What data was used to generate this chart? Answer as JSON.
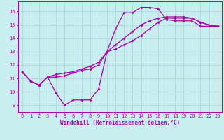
{
  "xlabel": "Windchill (Refroidissement éolien,°C)",
  "bg_color": "#c8eef0",
  "grid_color": "#b0d8dc",
  "line_color": "#aa00aa",
  "marker": "D",
  "markersize": 2.0,
  "linewidth": 0.9,
  "xlim": [
    -0.5,
    23.5
  ],
  "ylim": [
    8.5,
    16.75
  ],
  "xticks": [
    0,
    1,
    2,
    3,
    4,
    5,
    6,
    7,
    8,
    9,
    10,
    11,
    12,
    13,
    14,
    15,
    16,
    17,
    18,
    19,
    20,
    21,
    22,
    23
  ],
  "yticks": [
    9,
    10,
    11,
    12,
    13,
    14,
    15,
    16
  ],
  "curve1_x": [
    0,
    1,
    2,
    3,
    4,
    5,
    6,
    7,
    8,
    9,
    10,
    11,
    12,
    13,
    14,
    15,
    16,
    17,
    18,
    19,
    20,
    21,
    22,
    23
  ],
  "curve1_y": [
    11.5,
    10.8,
    10.5,
    11.1,
    9.9,
    9.0,
    9.4,
    9.4,
    9.4,
    10.2,
    13.0,
    14.7,
    15.9,
    15.9,
    16.3,
    16.3,
    16.2,
    15.4,
    15.3,
    15.3,
    15.3,
    14.9,
    14.9,
    14.9
  ],
  "curve2_x": [
    0,
    1,
    2,
    3,
    4,
    5,
    6,
    7,
    8,
    9,
    10,
    11,
    12,
    13,
    14,
    15,
    16,
    17,
    18,
    19,
    20,
    21,
    22,
    23
  ],
  "curve2_y": [
    11.5,
    10.8,
    10.5,
    11.1,
    11.1,
    11.2,
    11.4,
    11.6,
    11.7,
    12.0,
    13.0,
    13.2,
    13.5,
    13.8,
    14.2,
    14.7,
    15.2,
    15.5,
    15.5,
    15.5,
    15.5,
    15.2,
    15.0,
    14.9
  ],
  "curve3_x": [
    0,
    1,
    2,
    3,
    4,
    5,
    6,
    7,
    8,
    9,
    10,
    11,
    12,
    13,
    14,
    15,
    16,
    17,
    18,
    19,
    20,
    21,
    22,
    23
  ],
  "curve3_y": [
    11.5,
    10.8,
    10.5,
    11.1,
    11.3,
    11.4,
    11.5,
    11.7,
    11.9,
    12.2,
    13.0,
    13.5,
    14.0,
    14.5,
    15.0,
    15.3,
    15.5,
    15.6,
    15.6,
    15.6,
    15.5,
    15.2,
    15.0,
    14.9
  ],
  "tick_fontsize": 5.0,
  "xlabel_fontsize": 5.5
}
